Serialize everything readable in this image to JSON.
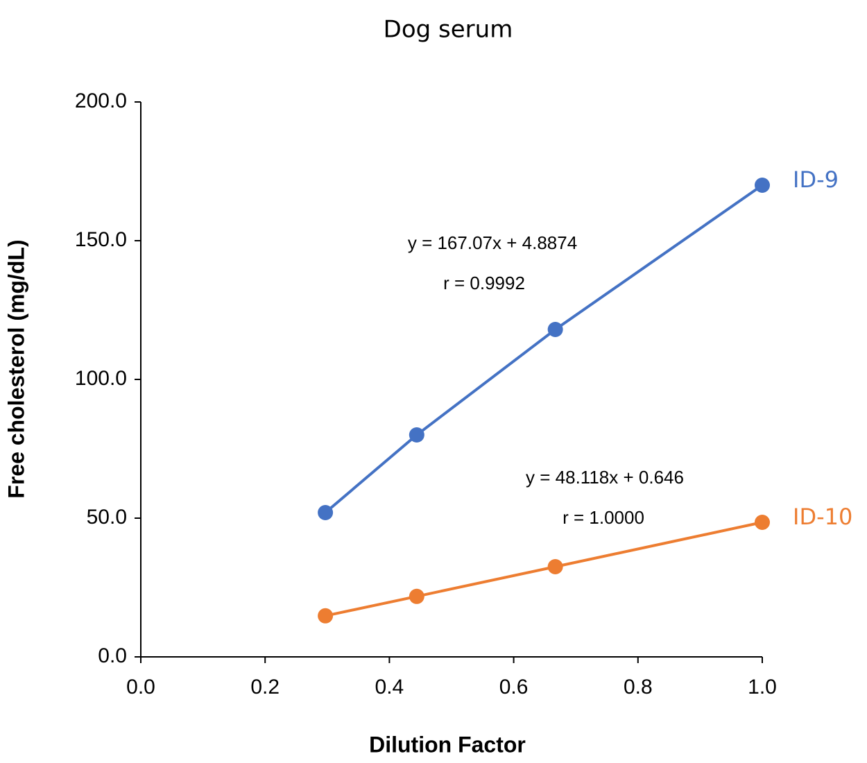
{
  "chart_data": {
    "type": "line",
    "title": "Dog serum",
    "x_label": "Dilution Factor",
    "y_label": "Free cholesterol (mg/dL)",
    "x": [
      0.297,
      0.444,
      0.667,
      1.0
    ],
    "series": [
      {
        "name": "ID-9",
        "color": "#4472c4",
        "values": [
          52.0,
          80.0,
          118.0,
          170.0
        ]
      },
      {
        "name": "ID-10",
        "color": "#ed7d31",
        "values": [
          14.8,
          21.8,
          32.5,
          48.5
        ]
      }
    ],
    "annotations": [
      "y = 167.07x + 4.8874",
      "r = 0.9992",
      "y = 48.118x + 0.646",
      "r = 1.0000"
    ],
    "xlim": [
      0,
      1
    ],
    "ylim": [
      0,
      200
    ],
    "xticks": [
      {
        "value": 0,
        "label": "0.0"
      },
      0.2,
      0.4,
      0.6,
      0.8,
      {
        "value": 1,
        "label": "1.0"
      }
    ],
    "yticks": [
      {
        "value": 0,
        "label": "0.0"
      },
      {
        "value": 50,
        "label": "50.0"
      },
      {
        "value": 100,
        "label": "100.0"
      },
      {
        "value": 150,
        "label": "150.0"
      },
      {
        "value": 200,
        "label": "200.0"
      }
    ],
    "grid": false
  }
}
